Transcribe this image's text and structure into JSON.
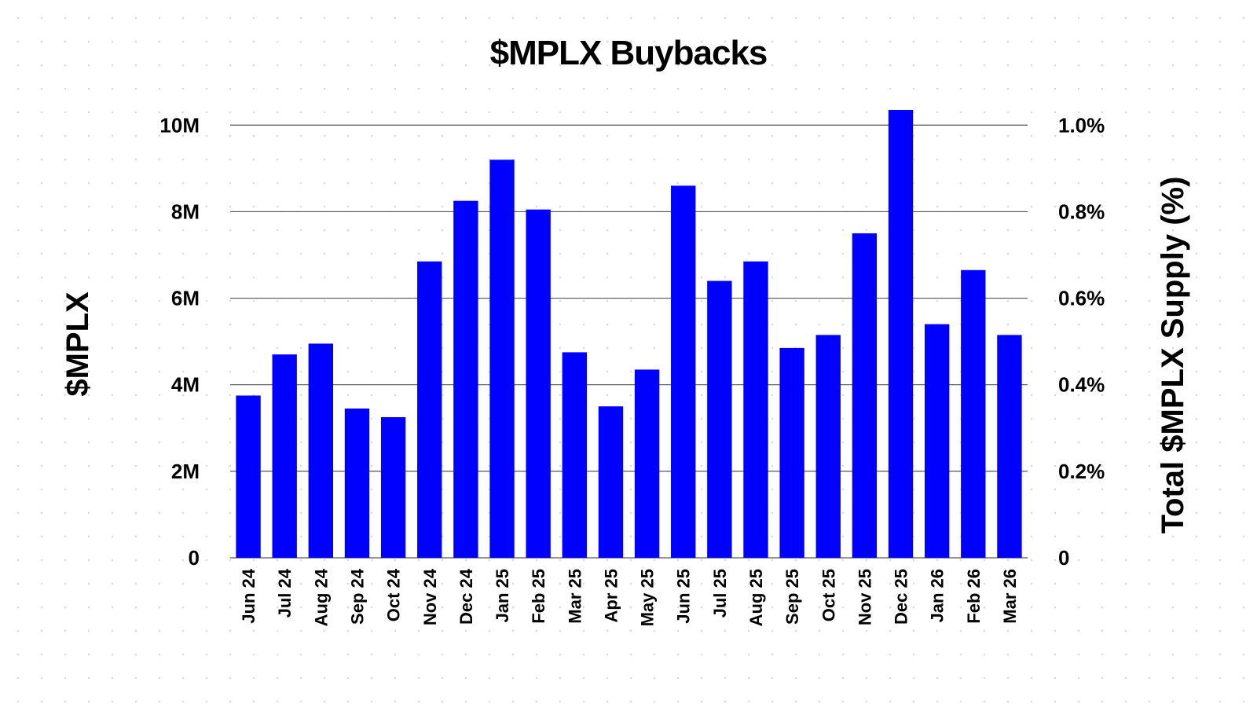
{
  "chart_data": {
    "type": "bar",
    "title": "$MPLX Buybacks",
    "ylabel": "$MPLX",
    "y2label": "Total $MPLX Supply (%)",
    "categories": [
      "Jun 24",
      "Jul 24",
      "Aug 24",
      "Sep 24",
      "Oct 24",
      "Nov 24",
      "Dec 24",
      "Jan 25",
      "Feb 25",
      "Mar 25",
      "Apr 25",
      "May 25",
      "Jun 25",
      "Jul 25",
      "Aug 25",
      "Sep 25",
      "Oct 25",
      "Nov 25",
      "Dec 25",
      "Jan 26",
      "Feb 26",
      "Mar 26"
    ],
    "values": [
      3750000,
      4700000,
      4950000,
      3450000,
      3250000,
      6850000,
      8250000,
      9200000,
      8050000,
      4750000,
      3500000,
      4350000,
      8600000,
      6400000,
      6850000,
      4850000,
      5150000,
      7500000,
      10350000,
      5400000,
      6650000,
      5150000
    ],
    "ylim": [
      0,
      10350000
    ],
    "yticks": [
      0,
      2000000,
      4000000,
      6000000,
      8000000,
      10000000
    ],
    "ytick_labels": [
      "0",
      "2M",
      "4M",
      "6M",
      "8M",
      "10M"
    ],
    "y2ticks": [
      0,
      0.2,
      0.4,
      0.6,
      0.8,
      1.0
    ],
    "y2tick_labels": [
      "0",
      "0.2%",
      "0.4%",
      "0.6%",
      "0.8%",
      "1.0%"
    ],
    "grid": true,
    "legend": "none",
    "bar_color": "#0000ff",
    "grid_color": "#555555"
  }
}
